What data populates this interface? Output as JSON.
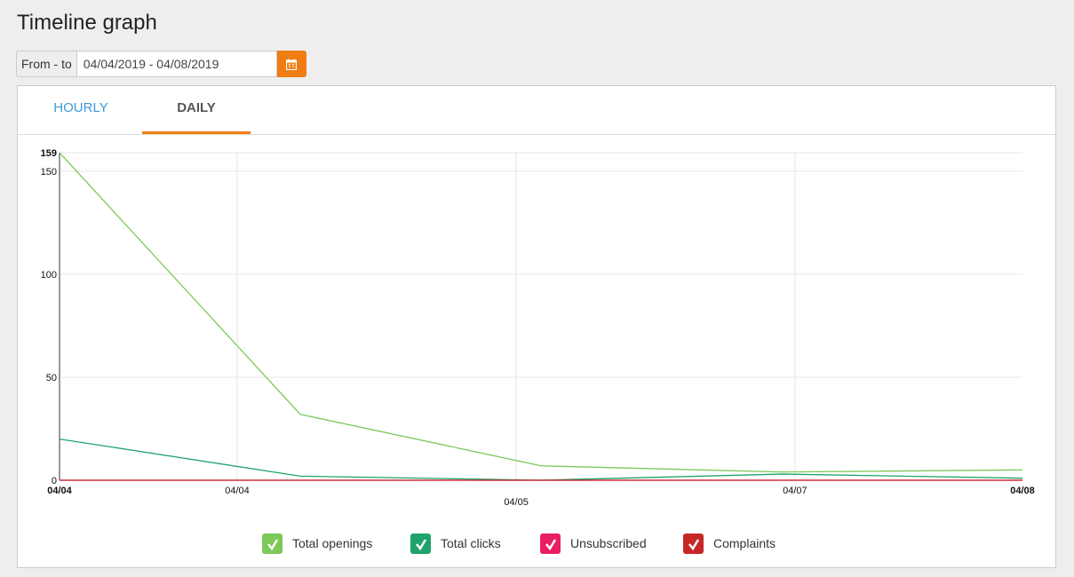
{
  "header": {
    "title": "Timeline graph"
  },
  "filter": {
    "label": "From - to",
    "value": "04/04/2019 - 04/08/2019"
  },
  "tabs": [
    {
      "label": "HOURLY"
    },
    {
      "label": "DAILY",
      "active": true
    }
  ],
  "chart_data": {
    "type": "line",
    "x": [
      0,
      1,
      2,
      3,
      4
    ],
    "xlim": [
      0,
      4
    ],
    "xticks": [
      {
        "value": 0,
        "label": "04/04"
      },
      {
        "value": 0.738,
        "label": "04/04"
      },
      {
        "value": 1.897,
        "label": "04/05"
      },
      {
        "value": 3.055,
        "label": "04/07"
      },
      {
        "value": 4,
        "label": "04/08"
      }
    ],
    "ylim": [
      0,
      159
    ],
    "yticks": [
      0,
      50,
      100,
      150,
      159
    ],
    "grid": true,
    "series": [
      {
        "name": "Total openings",
        "color": "#7cc95a",
        "values": [
          159,
          32,
          7,
          4,
          5
        ]
      },
      {
        "name": "Total clicks",
        "color": "#1fa36a",
        "values": [
          20,
          2,
          0,
          3,
          1
        ]
      },
      {
        "name": "Unsubscribed",
        "color": "#e91e63",
        "values": [
          0,
          0,
          0,
          0,
          0
        ]
      },
      {
        "name": "Complaints",
        "color": "#c62828",
        "values": [
          0,
          0,
          0,
          0,
          0
        ]
      }
    ]
  }
}
